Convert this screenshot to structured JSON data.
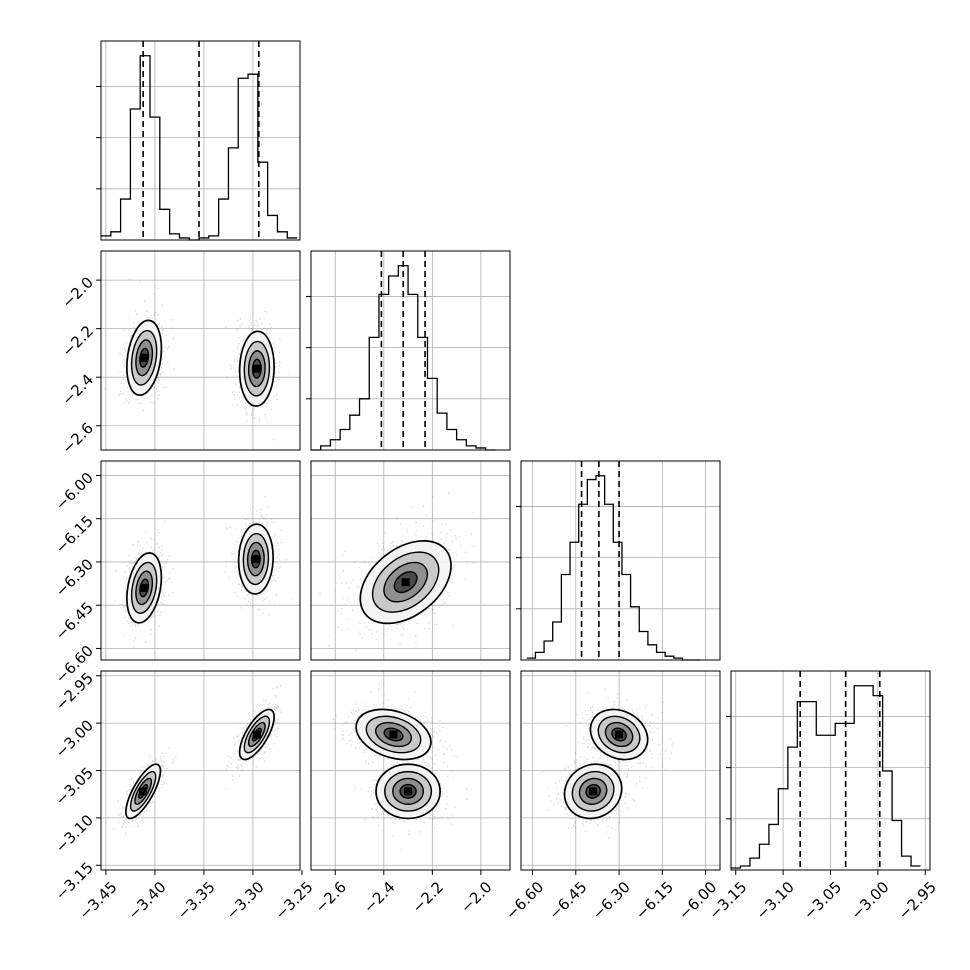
{
  "chart_data": {
    "type": "corner",
    "parameters": [
      {
        "range": [
          -3.455,
          -3.252
        ],
        "ticks": [
          -3.45,
          -3.4,
          -3.35,
          -3.3,
          -3.25
        ],
        "tick_labels": [
          "−3.45",
          "−3.40",
          "−3.35",
          "−3.30",
          "−3.25"
        ],
        "quantiles": [
          -3.412,
          -3.355,
          -3.294
        ],
        "histogram": {
          "bin_edges": [
            -3.455,
            -3.445,
            -3.435,
            -3.425,
            -3.415,
            -3.405,
            -3.395,
            -3.385,
            -3.375,
            -3.365,
            -3.355,
            -3.345,
            -3.335,
            -3.325,
            -3.315,
            -3.305,
            -3.295,
            -3.285,
            -3.275,
            -3.265,
            -3.255
          ],
          "counts": [
            2,
            4,
            20,
            64,
            90,
            60,
            15,
            3,
            1,
            0,
            1,
            2,
            20,
            45,
            79,
            81,
            38,
            12,
            4,
            1
          ]
        }
      },
      {
        "range": [
          -2.7,
          -1.88
        ],
        "ticks": [
          -2.6,
          -2.4,
          -2.2,
          -2.0
        ],
        "tick_labels": [
          "−2.6",
          "−2.4",
          "−2.2",
          "−2.0"
        ],
        "quantiles": [
          -2.41,
          -2.32,
          -2.23
        ],
        "histogram": {
          "bin_edges": [
            -2.7,
            -2.66,
            -2.62,
            -2.58,
            -2.54,
            -2.5,
            -2.46,
            -2.42,
            -2.38,
            -2.34,
            -2.3,
            -2.26,
            -2.22,
            -2.18,
            -2.14,
            -2.1,
            -2.06,
            -2.02,
            -1.98,
            -1.94
          ],
          "counts": [
            0,
            2,
            5,
            10,
            17,
            25,
            55,
            76,
            85,
            90,
            76,
            55,
            35,
            18,
            10,
            5,
            2,
            1,
            0
          ]
        }
      },
      {
        "range": [
          -6.64,
          -5.95
        ],
        "ticks": [
          -6.6,
          -6.45,
          -6.3,
          -6.15,
          -6.0
        ],
        "tick_labels": [
          "−6.60",
          "−6.45",
          "−6.30",
          "−6.15",
          "−6.00"
        ],
        "quantiles": [
          -6.43,
          -6.37,
          -6.3
        ],
        "histogram": {
          "bin_edges": [
            -6.62,
            -6.59,
            -6.56,
            -6.53,
            -6.5,
            -6.47,
            -6.44,
            -6.41,
            -6.38,
            -6.35,
            -6.32,
            -6.29,
            -6.26,
            -6.23,
            -6.2,
            -6.17,
            -6.14,
            -6.11,
            -6.08,
            -6.05,
            -6.02
          ],
          "counts": [
            1,
            4,
            10,
            20,
            45,
            62,
            82,
            95,
            97,
            82,
            62,
            45,
            28,
            15,
            8,
            4,
            2,
            1,
            0,
            0
          ]
        }
      },
      {
        "range": [
          -3.155,
          -2.945
        ],
        "ticks": [
          -3.15,
          -3.1,
          -3.05,
          -3.0,
          -2.95
        ],
        "tick_labels": [
          "−3.15",
          "−3.10",
          "−3.05",
          "−3.00",
          "−2.95"
        ],
        "quantiles": [
          -3.082,
          -3.034,
          -2.998
        ],
        "histogram": {
          "bin_edges": [
            -3.155,
            -3.145,
            -3.135,
            -3.125,
            -3.115,
            -3.105,
            -3.095,
            -3.085,
            -3.075,
            -3.065,
            -3.055,
            -3.045,
            -3.035,
            -3.025,
            -3.015,
            -3.005,
            -2.995,
            -2.985,
            -2.975,
            -2.965,
            -2.955
          ],
          "counts": [
            1,
            2,
            6,
            13,
            23,
            41,
            62,
            85,
            85,
            68,
            68,
            74,
            74,
            93,
            93,
            88,
            50,
            25,
            7,
            2
          ]
        }
      }
    ],
    "pairs": [
      {
        "x_param": 0,
        "y_param": 1,
        "clusters": [
          {
            "center": [
              -3.411,
              -2.32
            ],
            "sd": [
              0.008,
              0.07
            ],
            "corr": 0.25
          },
          {
            "center": [
              -3.296,
              -2.365
            ],
            "sd": [
              0.008,
              0.07
            ],
            "corr": 0.05
          }
        ]
      },
      {
        "x_param": 0,
        "y_param": 2,
        "clusters": [
          {
            "center": [
              -3.411,
              -6.39
            ],
            "sd": [
              0.008,
              0.055
            ],
            "corr": 0.3
          },
          {
            "center": [
              -3.297,
              -6.29
            ],
            "sd": [
              0.008,
              0.055
            ],
            "corr": 0.05
          }
        ]
      },
      {
        "x_param": 1,
        "y_param": 2,
        "clusters": [
          {
            "center": [
              -2.31,
              -6.37
            ],
            "sd": [
              0.085,
              0.065
            ],
            "corr": 0.4
          }
        ]
      },
      {
        "x_param": 0,
        "y_param": 3,
        "clusters": [
          {
            "center": [
              -3.412,
              -3.072
            ],
            "sd": [
              0.008,
              0.013
            ],
            "corr": 0.75
          },
          {
            "center": [
              -3.296,
              -3.012
            ],
            "sd": [
              0.008,
              0.012
            ],
            "corr": 0.7
          }
        ]
      },
      {
        "x_param": 1,
        "y_param": 3,
        "clusters": [
          {
            "center": [
              -2.36,
              -3.012
            ],
            "sd": [
              0.07,
              0.012
            ],
            "corr": -0.3
          },
          {
            "center": [
              -2.3,
              -3.072
            ],
            "sd": [
              0.06,
              0.013
            ],
            "corr": 0.0
          }
        ]
      },
      {
        "x_param": 2,
        "y_param": 3,
        "clusters": [
          {
            "center": [
              -6.3,
              -3.012
            ],
            "sd": [
              0.045,
              0.012
            ],
            "corr": -0.2
          },
          {
            "center": [
              -6.39,
              -3.072
            ],
            "sd": [
              0.045,
              0.013
            ],
            "corr": 0.1
          }
        ]
      }
    ],
    "grid": true,
    "contour_levels": 4
  }
}
